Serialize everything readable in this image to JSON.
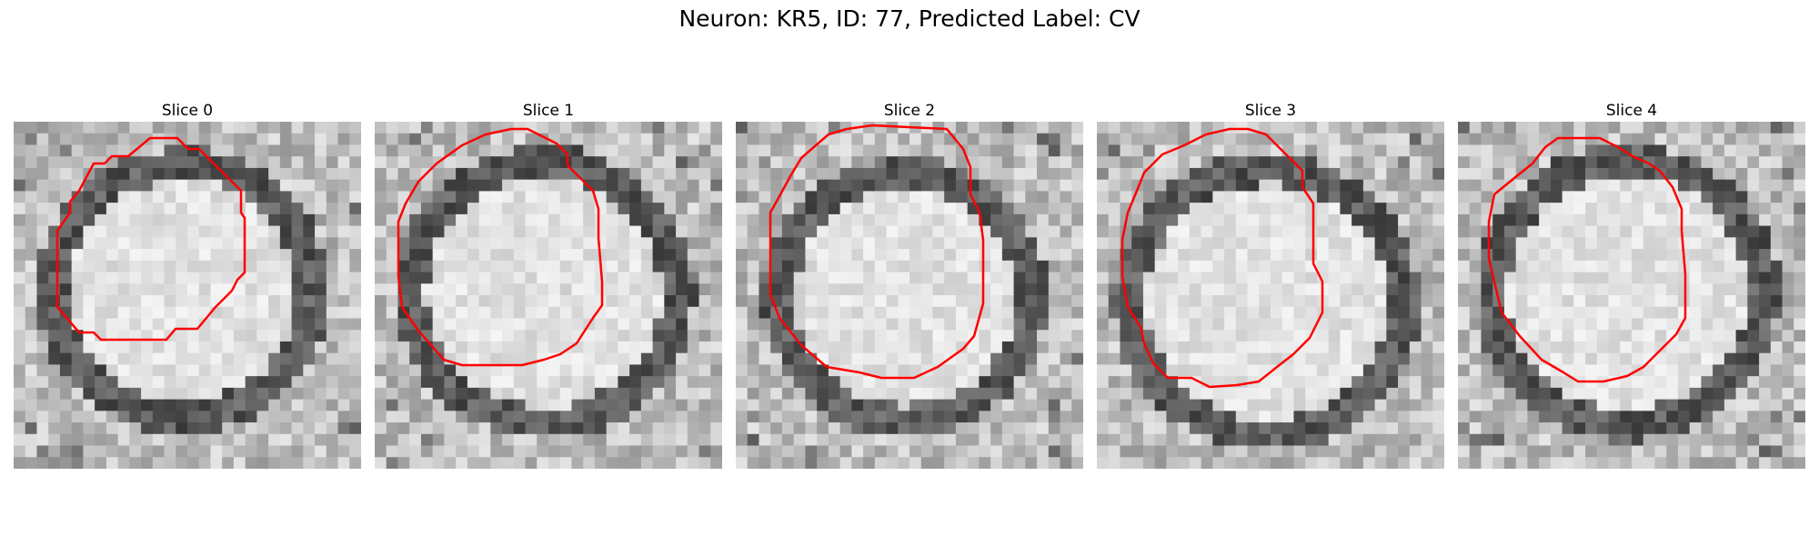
{
  "figure": {
    "title": "Neuron: KR5, ID: 77, Predicted Label: CV"
  },
  "panels": [
    {
      "title": "Slice 0",
      "seed": 11,
      "contour_color": "#ff0000",
      "contour": [
        [
          150,
          18
        ],
        [
          180,
          18
        ],
        [
          192,
          30
        ],
        [
          204,
          30
        ],
        [
          250,
          76
        ],
        [
          250,
          100
        ],
        [
          254,
          106
        ],
        [
          254,
          166
        ],
        [
          246,
          174
        ],
        [
          240,
          186
        ],
        [
          222,
          204
        ],
        [
          202,
          228
        ],
        [
          178,
          228
        ],
        [
          168,
          240
        ],
        [
          96,
          240
        ],
        [
          88,
          232
        ],
        [
          72,
          232
        ],
        [
          48,
          204
        ],
        [
          48,
          120
        ],
        [
          62,
          100
        ],
        [
          62,
          88
        ],
        [
          72,
          76
        ],
        [
          88,
          46
        ],
        [
          100,
          46
        ],
        [
          108,
          38
        ],
        [
          126,
          38
        ]
      ]
    },
    {
      "title": "Slice 1",
      "seed": 23,
      "contour_color": "#ff0000",
      "contour": [
        [
          150,
          8
        ],
        [
          168,
          8
        ],
        [
          180,
          14
        ],
        [
          200,
          24
        ],
        [
          212,
          36
        ],
        [
          212,
          48
        ],
        [
          240,
          76
        ],
        [
          246,
          96
        ],
        [
          246,
          128
        ],
        [
          250,
          176
        ],
        [
          250,
          202
        ],
        [
          240,
          216
        ],
        [
          222,
          244
        ],
        [
          204,
          256
        ],
        [
          186,
          262
        ],
        [
          162,
          268
        ],
        [
          132,
          268
        ],
        [
          96,
          268
        ],
        [
          76,
          262
        ],
        [
          48,
          230
        ],
        [
          30,
          204
        ],
        [
          26,
          170
        ],
        [
          26,
          110
        ],
        [
          34,
          90
        ],
        [
          48,
          66
        ],
        [
          68,
          46
        ],
        [
          96,
          26
        ],
        [
          122,
          14
        ]
      ]
    },
    {
      "title": "Slice 2",
      "seed": 37,
      "contour_color": "#ff0000",
      "contour": [
        [
          232,
          8
        ],
        [
          250,
          30
        ],
        [
          258,
          50
        ],
        [
          258,
          80
        ],
        [
          268,
          100
        ],
        [
          272,
          130
        ],
        [
          272,
          200
        ],
        [
          262,
          236
        ],
        [
          250,
          250
        ],
        [
          222,
          270
        ],
        [
          196,
          282
        ],
        [
          160,
          282
        ],
        [
          136,
          276
        ],
        [
          100,
          270
        ],
        [
          72,
          246
        ],
        [
          48,
          216
        ],
        [
          38,
          190
        ],
        [
          38,
          140
        ],
        [
          38,
          100
        ],
        [
          48,
          82
        ],
        [
          60,
          60
        ],
        [
          72,
          40
        ],
        [
          88,
          26
        ],
        [
          102,
          14
        ],
        [
          122,
          8
        ],
        [
          150,
          4
        ]
      ]
    },
    {
      "title": "Slice 3",
      "seed": 51,
      "contour_color": "#ff0000",
      "contour": [
        [
          166,
          8
        ],
        [
          186,
          14
        ],
        [
          198,
          26
        ],
        [
          212,
          40
        ],
        [
          226,
          54
        ],
        [
          226,
          72
        ],
        [
          238,
          90
        ],
        [
          238,
          156
        ],
        [
          248,
          176
        ],
        [
          248,
          210
        ],
        [
          234,
          238
        ],
        [
          216,
          256
        ],
        [
          198,
          270
        ],
        [
          178,
          286
        ],
        [
          154,
          290
        ],
        [
          124,
          292
        ],
        [
          104,
          282
        ],
        [
          78,
          282
        ],
        [
          62,
          266
        ],
        [
          52,
          244
        ],
        [
          48,
          226
        ],
        [
          34,
          204
        ],
        [
          28,
          170
        ],
        [
          28,
          130
        ],
        [
          34,
          100
        ],
        [
          44,
          76
        ],
        [
          52,
          56
        ],
        [
          72,
          36
        ],
        [
          96,
          26
        ],
        [
          120,
          14
        ],
        [
          146,
          8
        ]
      ]
    },
    {
      "title": "Slice 4",
      "seed": 67,
      "contour_color": "#ff0000",
      "contour": [
        [
          130,
          18
        ],
        [
          156,
          18
        ],
        [
          176,
          28
        ],
        [
          192,
          38
        ],
        [
          210,
          46
        ],
        [
          222,
          54
        ],
        [
          236,
          72
        ],
        [
          246,
          96
        ],
        [
          246,
          120
        ],
        [
          250,
          168
        ],
        [
          250,
          216
        ],
        [
          240,
          234
        ],
        [
          222,
          252
        ],
        [
          204,
          270
        ],
        [
          186,
          280
        ],
        [
          160,
          286
        ],
        [
          132,
          286
        ],
        [
          116,
          276
        ],
        [
          92,
          262
        ],
        [
          68,
          236
        ],
        [
          48,
          210
        ],
        [
          40,
          176
        ],
        [
          34,
          150
        ],
        [
          34,
          110
        ],
        [
          40,
          80
        ],
        [
          62,
          62
        ],
        [
          82,
          46
        ],
        [
          96,
          28
        ],
        [
          110,
          18
        ]
      ]
    }
  ]
}
